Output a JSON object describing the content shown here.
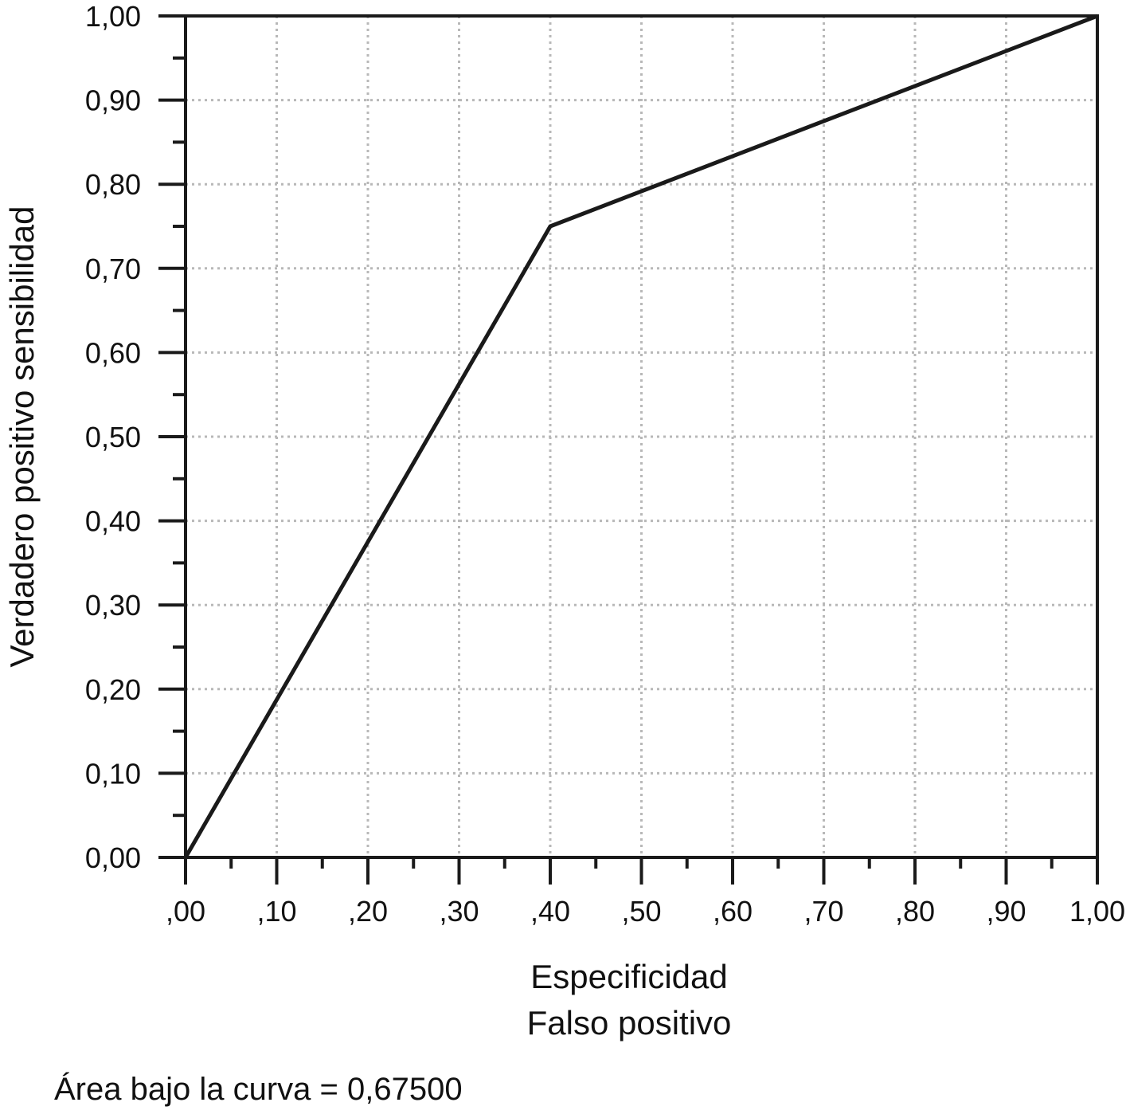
{
  "chart_data": {
    "type": "line",
    "xlabel": "Especificidad",
    "xlabel2": "Falso positivo",
    "ylabel": "Verdadero positivo sensibilidad",
    "xlim": [
      0,
      1
    ],
    "ylim": [
      0,
      1
    ],
    "x_ticks": [
      {
        "value": 0.0,
        "label": ",00"
      },
      {
        "value": 0.1,
        "label": ",10"
      },
      {
        "value": 0.2,
        "label": ",20"
      },
      {
        "value": 0.3,
        "label": ",30"
      },
      {
        "value": 0.4,
        "label": ",40"
      },
      {
        "value": 0.5,
        "label": ",50"
      },
      {
        "value": 0.6,
        "label": ",60"
      },
      {
        "value": 0.7,
        "label": ",70"
      },
      {
        "value": 0.8,
        "label": ",80"
      },
      {
        "value": 0.9,
        "label": ",90"
      },
      {
        "value": 1.0,
        "label": "1,00"
      }
    ],
    "y_ticks": [
      {
        "value": 0.0,
        "label": "0,00"
      },
      {
        "value": 0.1,
        "label": "0,10"
      },
      {
        "value": 0.2,
        "label": "0,20"
      },
      {
        "value": 0.3,
        "label": "0,30"
      },
      {
        "value": 0.4,
        "label": "0,40"
      },
      {
        "value": 0.5,
        "label": "0,50"
      },
      {
        "value": 0.6,
        "label": "0,60"
      },
      {
        "value": 0.7,
        "label": "0,70"
      },
      {
        "value": 0.8,
        "label": "0,80"
      },
      {
        "value": 0.9,
        "label": "0,90"
      },
      {
        "value": 1.0,
        "label": "1,00"
      }
    ],
    "grid": true,
    "series": [
      {
        "x": [
          0.0,
          0.4,
          1.0
        ],
        "y": [
          0.0,
          0.75,
          1.0
        ]
      }
    ],
    "annotation": "Área bajo la curva = 0,67500"
  }
}
